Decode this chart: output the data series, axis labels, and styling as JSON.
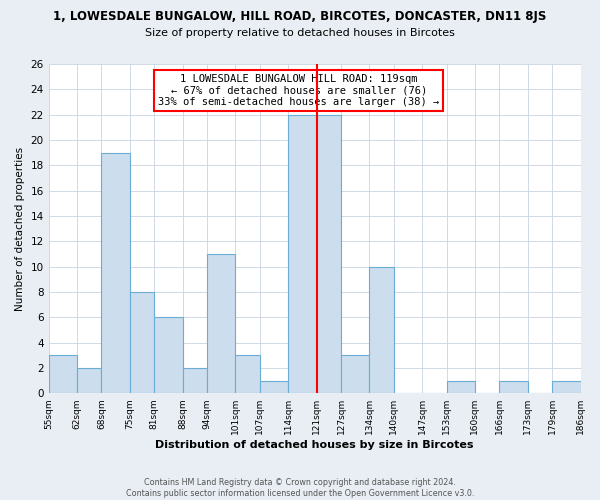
{
  "title_line1": "1, LOWESDALE BUNGALOW, HILL ROAD, BIRCOTES, DONCASTER, DN11 8JS",
  "title_line2": "Size of property relative to detached houses in Bircotes",
  "xlabel": "Distribution of detached houses by size in Bircotes",
  "ylabel": "Number of detached properties",
  "bin_edges": [
    55,
    62,
    68,
    75,
    81,
    88,
    94,
    101,
    107,
    114,
    121,
    127,
    134,
    140,
    147,
    153,
    160,
    166,
    173,
    179,
    186
  ],
  "bin_labels": [
    "55sqm",
    "62sqm",
    "68sqm",
    "75sqm",
    "81sqm",
    "88sqm",
    "94sqm",
    "101sqm",
    "107sqm",
    "114sqm",
    "121sqm",
    "127sqm",
    "134sqm",
    "140sqm",
    "147sqm",
    "153sqm",
    "160sqm",
    "166sqm",
    "173sqm",
    "179sqm",
    "186sqm"
  ],
  "counts": [
    3,
    2,
    19,
    8,
    6,
    2,
    11,
    3,
    1,
    22,
    22,
    3,
    10,
    0,
    0,
    1,
    0,
    1,
    0,
    1
  ],
  "bar_color": "#ccdded",
  "bar_edge_color": "#6aaed6",
  "red_line_x": 121,
  "ylim": [
    0,
    26
  ],
  "yticks": [
    0,
    2,
    4,
    6,
    8,
    10,
    12,
    14,
    16,
    18,
    20,
    22,
    24,
    26
  ],
  "annotation_title": "1 LOWESDALE BUNGALOW HILL ROAD: 119sqm",
  "annotation_line2": "← 67% of detached houses are smaller (76)",
  "annotation_line3": "33% of semi-detached houses are larger (38) →",
  "footer_line1": "Contains HM Land Registry data © Crown copyright and database right 2024.",
  "footer_line2": "Contains public sector information licensed under the Open Government Licence v3.0.",
  "background_color": "#e8eef4",
  "plot_bg_color": "#ffffff",
  "grid_color": "#c8d4e0"
}
